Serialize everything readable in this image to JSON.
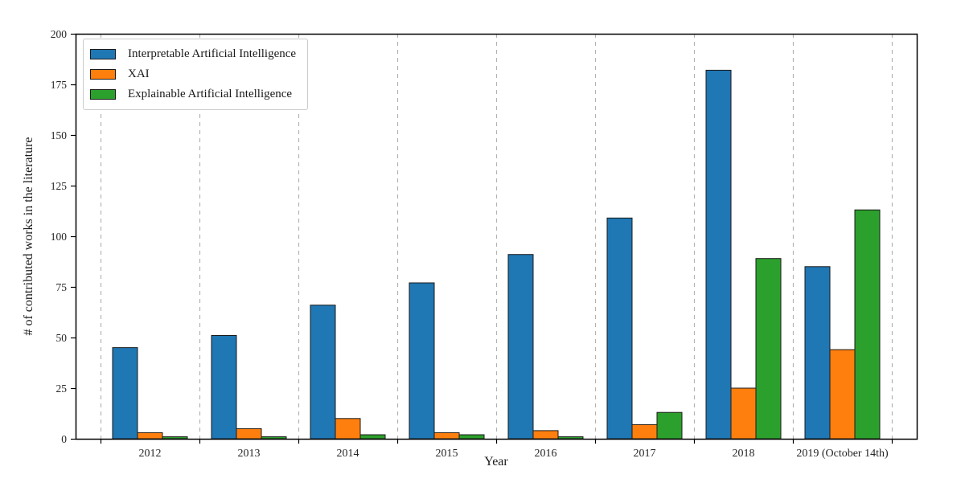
{
  "chart_data": {
    "type": "bar",
    "title": "",
    "xlabel": "Year",
    "ylabel": "# of contributed works in the literature",
    "categories": [
      "2012",
      "2013",
      "2014",
      "2015",
      "2016",
      "2017",
      "2018",
      "2019 (October 14th)"
    ],
    "series": [
      {
        "name": "Interpretable Artificial Intelligence",
        "color": "#1f77b4",
        "values": [
          45,
          51,
          66,
          77,
          91,
          109,
          182,
          85
        ]
      },
      {
        "name": "XAI",
        "color": "#ff7f0e",
        "values": [
          3,
          5,
          10,
          3,
          4,
          7,
          25,
          44
        ]
      },
      {
        "name": "Explainable Artificial Intelligence",
        "color": "#2ca02c",
        "values": [
          1,
          1,
          2,
          2,
          1,
          13,
          89,
          113
        ]
      }
    ],
    "ylim": [
      0,
      200
    ],
    "yticks": [
      0,
      25,
      50,
      75,
      100,
      125,
      150,
      175,
      200
    ],
    "grid": "vertical dashed gridlines at group boundaries",
    "legend_position": "upper left",
    "colors": {
      "bar_edge": "#1a1a1a",
      "grid_line": "#b3b3b3",
      "spine": "#000000",
      "tick_text": "#262626"
    }
  }
}
